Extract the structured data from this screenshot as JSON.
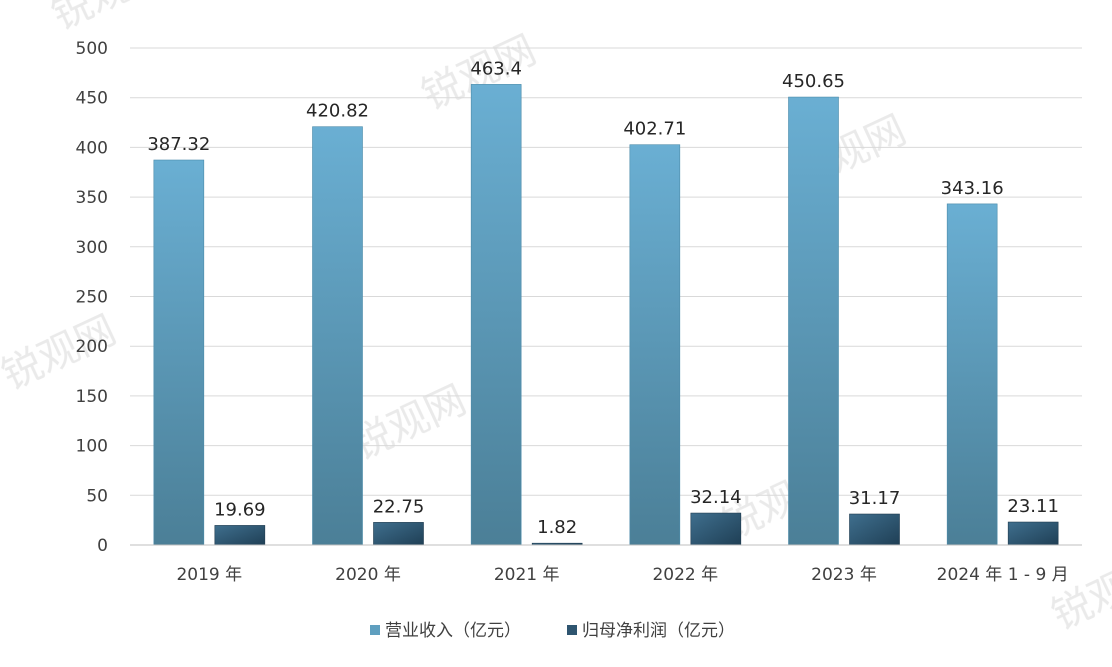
{
  "chart_data": {
    "type": "bar",
    "categories": [
      "2019 年",
      "2020 年",
      "2021 年",
      "2022 年",
      "2023 年",
      "2024 年 1 - 9 月"
    ],
    "series": [
      {
        "name": "营业收入（亿元）",
        "values": [
          387.32,
          420.82,
          463.4,
          402.71,
          450.65,
          343.16
        ],
        "labels": [
          "387.32",
          "420.82",
          "463.4",
          "402.71",
          "450.65",
          "343.16"
        ],
        "color": "#5f9fbf"
      },
      {
        "name": "归母净利润（亿元）",
        "values": [
          19.69,
          22.75,
          1.82,
          32.14,
          31.17,
          23.11
        ],
        "labels": [
          "19.69",
          "22.75",
          "1.82",
          "32.14",
          "31.17",
          "23.11"
        ],
        "color": "#2e5570"
      }
    ],
    "yticks": [
      "0",
      "50",
      "100",
      "150",
      "200",
      "250",
      "300",
      "350",
      "400",
      "450",
      "500"
    ],
    "ylim": [
      0,
      500
    ],
    "grid": true,
    "legend_position": "bottom"
  }
}
